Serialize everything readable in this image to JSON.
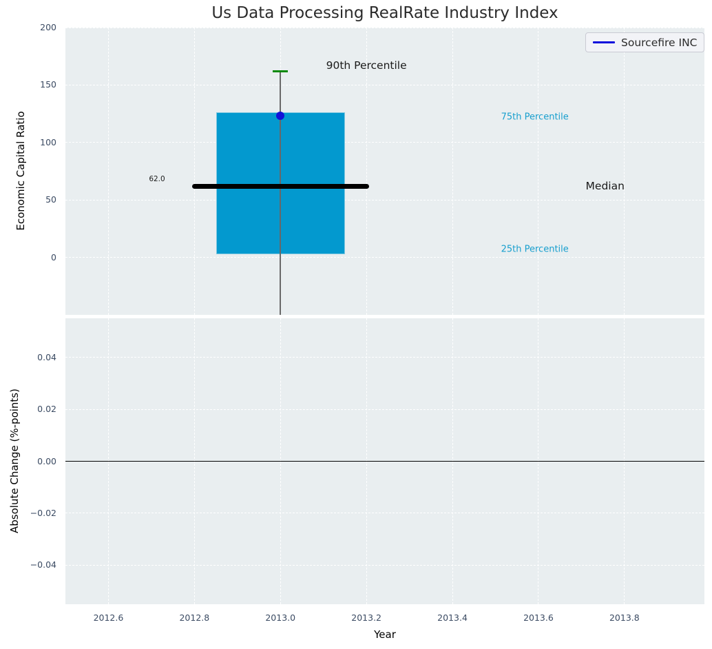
{
  "figure": {
    "title": "Us Data Processing RealRate Industry Index",
    "legend": {
      "label": "Sourcefire INC"
    }
  },
  "colors": {
    "axes_bg": "#e9eef0",
    "grid": "#ffffff",
    "tick_text": "#3a4a62",
    "title_text": "#2b2b2b",
    "box_fill": "#0399cf",
    "box_edge": "#82c8e0",
    "whisker": "#686868",
    "cap_green": "#098909",
    "marker_blue": "#1212d8",
    "legend_line": "#0b0bdc",
    "cyan_text": "#189fce",
    "dark_text": "#1a1a1a",
    "zero_line": "#000000"
  },
  "chart_data": [
    {
      "type": "box",
      "title": "Us Data Processing RealRate Industry Index",
      "ylabel": "Economic Capital Ratio",
      "xlim": [
        2012.5,
        2013.986
      ],
      "ylim": [
        -50,
        200
      ],
      "grid": true,
      "yticks": [
        {
          "v": 0,
          "label": "0"
        },
        {
          "v": 50,
          "label": "50"
        },
        {
          "v": 100,
          "label": "100"
        },
        {
          "v": 150,
          "label": "150"
        },
        {
          "v": 200,
          "label": "200"
        }
      ],
      "box": {
        "x": 2013.0,
        "box_width": 0.3,
        "p25": 3,
        "median": 62,
        "p75": 126,
        "p90": 162,
        "median_line_span": [
          2012.8,
          2013.2
        ],
        "cap_half_width": 0.0176,
        "whisker_min_clip": -50
      },
      "series": [
        {
          "name": "Sourcefire INC",
          "x": 2013.0,
          "y": 123
        }
      ],
      "legend_position": "upper right",
      "annotations": [
        {
          "text": "62.0",
          "x": 2012.713,
          "y": 68,
          "size": 10.5,
          "color": "#1a1a1a",
          "ha": "center"
        },
        {
          "text": "90th Percentile",
          "x": 2013.2,
          "y": 167,
          "size": 15.5,
          "color": "#1a1a1a",
          "ha": "center"
        },
        {
          "text": "75th Percentile",
          "x": 2013.513,
          "y": 122,
          "size": 13,
          "color": "#189fce",
          "ha": "left"
        },
        {
          "text": "Median",
          "x": 2013.755,
          "y": 62,
          "size": 15.5,
          "color": "#1a1a1a",
          "ha": "center"
        },
        {
          "text": "25th Percentile",
          "x": 2013.513,
          "y": 7,
          "size": 13,
          "color": "#189fce",
          "ha": "left"
        }
      ]
    },
    {
      "type": "line",
      "ylabel": "Absolute Change (%-points)",
      "xlabel": "Year",
      "xlim": [
        2012.5,
        2013.986
      ],
      "ylim": [
        -0.055,
        0.055
      ],
      "grid": true,
      "yticks": [
        {
          "v": -0.04,
          "label": "−0.04"
        },
        {
          "v": -0.02,
          "label": "−0.02"
        },
        {
          "v": 0,
          "label": "0.00"
        },
        {
          "v": 0.02,
          "label": "0.02"
        },
        {
          "v": 0.04,
          "label": "0.04"
        }
      ],
      "xticks": [
        {
          "v": 2012.6,
          "label": "2012.6"
        },
        {
          "v": 2012.8,
          "label": "2012.8"
        },
        {
          "v": 2013.0,
          "label": "2013.0"
        },
        {
          "v": 2013.2,
          "label": "2013.2"
        },
        {
          "v": 2013.4,
          "label": "2013.4"
        },
        {
          "v": 2013.6,
          "label": "2013.6"
        },
        {
          "v": 2013.8,
          "label": "2013.8"
        }
      ],
      "zero_line": 0,
      "series": []
    }
  ]
}
